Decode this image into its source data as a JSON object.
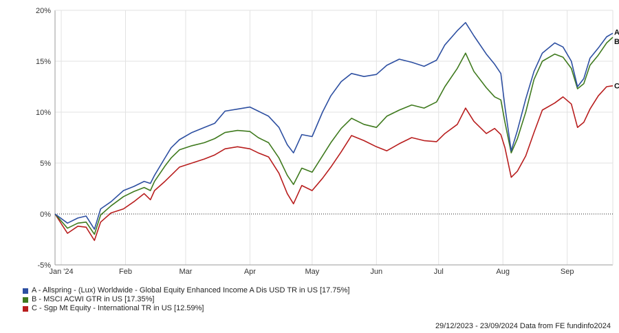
{
  "chart_data": {
    "type": "line",
    "x_start": "2023-12-29",
    "x_end": "2024-09-23",
    "y_unit": "%",
    "ylim": [
      -5,
      20
    ],
    "yticks": [
      -5,
      0,
      5,
      10,
      15,
      20
    ],
    "ytick_labels": [
      "-5%",
      "0%",
      "5%",
      "10%",
      "15%",
      "20%"
    ],
    "xticks": [
      {
        "label": "Jan '24",
        "date": "2024-01-01"
      },
      {
        "label": "Feb",
        "date": "2024-02-01"
      },
      {
        "label": "Mar",
        "date": "2024-03-01"
      },
      {
        "label": "Apr",
        "date": "2024-04-01"
      },
      {
        "label": "May",
        "date": "2024-05-01"
      },
      {
        "label": "Jun",
        "date": "2024-06-01"
      },
      {
        "label": "Jul",
        "date": "2024-07-01"
      },
      {
        "label": "Aug",
        "date": "2024-08-01"
      },
      {
        "label": "Sep",
        "date": "2024-09-01"
      }
    ],
    "grid": true,
    "zero_line": "dotted",
    "legend_position": "bottom-left",
    "series": [
      {
        "key": "A",
        "name": "A - Allspring - (Lux) Worldwide - Global Equity Enhanced Income A Dis USD TR in US [17.75%]",
        "color": "#2d4fa1",
        "points": [
          [
            "2023-12-29",
            0
          ],
          [
            "2024-01-04",
            -0.9
          ],
          [
            "2024-01-09",
            -0.4
          ],
          [
            "2024-01-13",
            -0.2
          ],
          [
            "2024-01-17",
            -1.5
          ],
          [
            "2024-01-20",
            0.5
          ],
          [
            "2024-01-25",
            1.2
          ],
          [
            "2024-01-31",
            2.3
          ],
          [
            "2024-02-05",
            2.7
          ],
          [
            "2024-02-10",
            3.2
          ],
          [
            "2024-02-13",
            3.0
          ],
          [
            "2024-02-15",
            3.8
          ],
          [
            "2024-02-20",
            5.5
          ],
          [
            "2024-02-23",
            6.5
          ],
          [
            "2024-02-27",
            7.3
          ],
          [
            "2024-03-04",
            8.0
          ],
          [
            "2024-03-10",
            8.5
          ],
          [
            "2024-03-15",
            8.9
          ],
          [
            "2024-03-20",
            10.1
          ],
          [
            "2024-03-26",
            10.3
          ],
          [
            "2024-04-01",
            10.5
          ],
          [
            "2024-04-05",
            10.1
          ],
          [
            "2024-04-10",
            9.6
          ],
          [
            "2024-04-15",
            8.5
          ],
          [
            "2024-04-19",
            6.8
          ],
          [
            "2024-04-22",
            6.0
          ],
          [
            "2024-04-26",
            7.8
          ],
          [
            "2024-05-01",
            7.6
          ],
          [
            "2024-05-06",
            10.0
          ],
          [
            "2024-05-10",
            11.6
          ],
          [
            "2024-05-15",
            13.0
          ],
          [
            "2024-05-20",
            13.8
          ],
          [
            "2024-05-26",
            13.5
          ],
          [
            "2024-06-01",
            13.7
          ],
          [
            "2024-06-06",
            14.6
          ],
          [
            "2024-06-12",
            15.2
          ],
          [
            "2024-06-18",
            14.9
          ],
          [
            "2024-06-24",
            14.5
          ],
          [
            "2024-06-30",
            15.1
          ],
          [
            "2024-07-04",
            16.6
          ],
          [
            "2024-07-10",
            18.0
          ],
          [
            "2024-07-14",
            18.8
          ],
          [
            "2024-07-18",
            17.5
          ],
          [
            "2024-07-24",
            15.7
          ],
          [
            "2024-07-28",
            14.7
          ],
          [
            "2024-07-31",
            13.8
          ],
          [
            "2024-08-02",
            10.5
          ],
          [
            "2024-08-05",
            6.2
          ],
          [
            "2024-08-08",
            8.2
          ],
          [
            "2024-08-12",
            11.3
          ],
          [
            "2024-08-16",
            14.0
          ],
          [
            "2024-08-20",
            15.8
          ],
          [
            "2024-08-26",
            16.8
          ],
          [
            "2024-08-30",
            16.4
          ],
          [
            "2024-09-03",
            15.0
          ],
          [
            "2024-09-06",
            12.5
          ],
          [
            "2024-09-09",
            13.3
          ],
          [
            "2024-09-12",
            15.3
          ],
          [
            "2024-09-16",
            16.3
          ],
          [
            "2024-09-20",
            17.4
          ],
          [
            "2024-09-23",
            17.75
          ]
        ]
      },
      {
        "key": "B",
        "name": "B - MSCI ACWI GTR in US [17.35%]",
        "color": "#3f7a1e",
        "points": [
          [
            "2023-12-29",
            0
          ],
          [
            "2024-01-04",
            -1.4
          ],
          [
            "2024-01-09",
            -0.9
          ],
          [
            "2024-01-13",
            -0.8
          ],
          [
            "2024-01-17",
            -2.0
          ],
          [
            "2024-01-20",
            -0.1
          ],
          [
            "2024-01-25",
            0.8
          ],
          [
            "2024-01-31",
            1.7
          ],
          [
            "2024-02-05",
            2.2
          ],
          [
            "2024-02-10",
            2.6
          ],
          [
            "2024-02-13",
            2.3
          ],
          [
            "2024-02-15",
            3.2
          ],
          [
            "2024-02-20",
            4.7
          ],
          [
            "2024-02-23",
            5.5
          ],
          [
            "2024-02-27",
            6.3
          ],
          [
            "2024-03-04",
            6.7
          ],
          [
            "2024-03-10",
            7.0
          ],
          [
            "2024-03-15",
            7.4
          ],
          [
            "2024-03-20",
            8.0
          ],
          [
            "2024-03-26",
            8.2
          ],
          [
            "2024-04-01",
            8.1
          ],
          [
            "2024-04-05",
            7.5
          ],
          [
            "2024-04-10",
            7.0
          ],
          [
            "2024-04-15",
            5.5
          ],
          [
            "2024-04-19",
            3.8
          ],
          [
            "2024-04-22",
            2.9
          ],
          [
            "2024-04-26",
            4.5
          ],
          [
            "2024-05-01",
            4.1
          ],
          [
            "2024-05-06",
            5.7
          ],
          [
            "2024-05-10",
            7.0
          ],
          [
            "2024-05-15",
            8.4
          ],
          [
            "2024-05-20",
            9.4
          ],
          [
            "2024-05-26",
            8.8
          ],
          [
            "2024-06-01",
            8.5
          ],
          [
            "2024-06-06",
            9.6
          ],
          [
            "2024-06-12",
            10.2
          ],
          [
            "2024-06-18",
            10.7
          ],
          [
            "2024-06-24",
            10.4
          ],
          [
            "2024-06-30",
            11.0
          ],
          [
            "2024-07-04",
            12.5
          ],
          [
            "2024-07-10",
            14.3
          ],
          [
            "2024-07-14",
            15.8
          ],
          [
            "2024-07-18",
            14.0
          ],
          [
            "2024-07-24",
            12.4
          ],
          [
            "2024-07-28",
            11.5
          ],
          [
            "2024-07-31",
            11.2
          ],
          [
            "2024-08-02",
            9.0
          ],
          [
            "2024-08-05",
            6.0
          ],
          [
            "2024-08-08",
            7.4
          ],
          [
            "2024-08-12",
            10.0
          ],
          [
            "2024-08-16",
            13.2
          ],
          [
            "2024-08-20",
            15.0
          ],
          [
            "2024-08-26",
            15.7
          ],
          [
            "2024-08-30",
            15.4
          ],
          [
            "2024-09-03",
            14.3
          ],
          [
            "2024-09-06",
            12.3
          ],
          [
            "2024-09-09",
            12.8
          ],
          [
            "2024-09-12",
            14.6
          ],
          [
            "2024-09-16",
            15.6
          ],
          [
            "2024-09-20",
            16.8
          ],
          [
            "2024-09-23",
            17.35
          ]
        ]
      },
      {
        "key": "C",
        "name": "C - Sgp Mt Equity - International TR in US [12.59%]",
        "color": "#b81d1d",
        "points": [
          [
            "2023-12-29",
            0
          ],
          [
            "2024-01-04",
            -1.9
          ],
          [
            "2024-01-09",
            -1.2
          ],
          [
            "2024-01-13",
            -1.3
          ],
          [
            "2024-01-17",
            -2.6
          ],
          [
            "2024-01-20",
            -0.8
          ],
          [
            "2024-01-25",
            0.1
          ],
          [
            "2024-01-31",
            0.5
          ],
          [
            "2024-02-05",
            1.2
          ],
          [
            "2024-02-10",
            2.0
          ],
          [
            "2024-02-13",
            1.4
          ],
          [
            "2024-02-15",
            2.3
          ],
          [
            "2024-02-20",
            3.2
          ],
          [
            "2024-02-23",
            3.8
          ],
          [
            "2024-02-27",
            4.6
          ],
          [
            "2024-03-04",
            5.0
          ],
          [
            "2024-03-10",
            5.4
          ],
          [
            "2024-03-15",
            5.8
          ],
          [
            "2024-03-20",
            6.4
          ],
          [
            "2024-03-26",
            6.6
          ],
          [
            "2024-04-01",
            6.4
          ],
          [
            "2024-04-05",
            6.0
          ],
          [
            "2024-04-10",
            5.6
          ],
          [
            "2024-04-15",
            4.0
          ],
          [
            "2024-04-19",
            2.0
          ],
          [
            "2024-04-22",
            1.0
          ],
          [
            "2024-04-26",
            2.8
          ],
          [
            "2024-05-01",
            2.3
          ],
          [
            "2024-05-06",
            3.5
          ],
          [
            "2024-05-10",
            4.6
          ],
          [
            "2024-05-15",
            6.1
          ],
          [
            "2024-05-20",
            7.7
          ],
          [
            "2024-05-26",
            7.2
          ],
          [
            "2024-06-01",
            6.6
          ],
          [
            "2024-06-06",
            6.2
          ],
          [
            "2024-06-12",
            6.9
          ],
          [
            "2024-06-18",
            7.5
          ],
          [
            "2024-06-24",
            7.2
          ],
          [
            "2024-06-30",
            7.1
          ],
          [
            "2024-07-04",
            7.9
          ],
          [
            "2024-07-10",
            8.8
          ],
          [
            "2024-07-14",
            10.4
          ],
          [
            "2024-07-18",
            9.1
          ],
          [
            "2024-07-24",
            7.9
          ],
          [
            "2024-07-28",
            8.4
          ],
          [
            "2024-07-31",
            7.8
          ],
          [
            "2024-08-02",
            6.5
          ],
          [
            "2024-08-05",
            3.6
          ],
          [
            "2024-08-08",
            4.2
          ],
          [
            "2024-08-12",
            5.7
          ],
          [
            "2024-08-16",
            8.0
          ],
          [
            "2024-08-20",
            10.2
          ],
          [
            "2024-08-26",
            10.9
          ],
          [
            "2024-08-30",
            11.5
          ],
          [
            "2024-09-03",
            10.8
          ],
          [
            "2024-09-06",
            8.5
          ],
          [
            "2024-09-09",
            9.0
          ],
          [
            "2024-09-12",
            10.3
          ],
          [
            "2024-09-16",
            11.6
          ],
          [
            "2024-09-20",
            12.5
          ],
          [
            "2024-09-23",
            12.59
          ]
        ]
      }
    ]
  },
  "footer": {
    "text": "29/12/2023 - 23/09/2024 Data from FE fundinfo2024"
  }
}
